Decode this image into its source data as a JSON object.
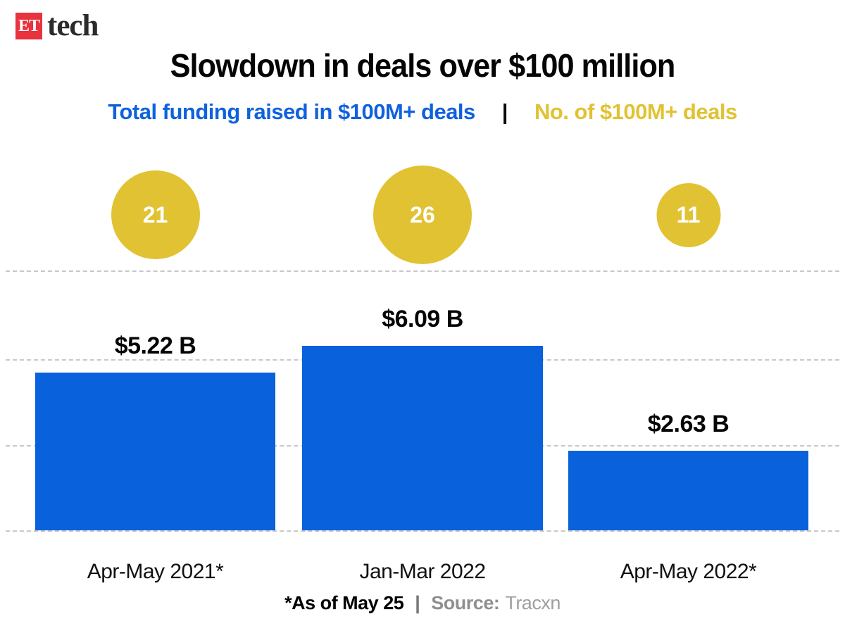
{
  "logo": {
    "et": "ET",
    "tech": "tech"
  },
  "title": "Slowdown in deals over $100 million",
  "legend": {
    "funding_label": "Total funding raised in $100M+ deals",
    "separator": "|",
    "deals_label": "No. of $100M+ deals"
  },
  "chart_data": {
    "type": "bar",
    "categories": [
      "Apr-May 2021*",
      "Jan-Mar 2022",
      "Apr-May 2022*"
    ],
    "series": [
      {
        "name": "Total funding raised in $100M+ deals ($B)",
        "values": [
          5.22,
          6.09,
          2.63
        ],
        "labels": [
          "$5.22 B",
          "$6.09 B",
          "$2.63 B"
        ],
        "style": "bar"
      },
      {
        "name": "No. of $100M+ deals",
        "values": [
          21,
          26,
          11
        ],
        "style": "area-proportional-bubble"
      }
    ],
    "ylim": [
      0,
      8.6
    ],
    "grid": "horizontal-dashed",
    "legend_position": "top"
  },
  "footer": {
    "note": "*As of May 25",
    "separator": "|",
    "source_label": "Source:",
    "source_value": "Tracxn"
  },
  "colors": {
    "bar_blue": "#0961DC",
    "legend_blue": "#0F62DE",
    "bubble_yellow": "#E1C232",
    "logo_red": "#E8323E",
    "title_black": "#050505",
    "gridline_gray": "#C8C8C8",
    "footer_gray": "#8F8F8F",
    "source_value_gray": "#9E9E9E"
  }
}
